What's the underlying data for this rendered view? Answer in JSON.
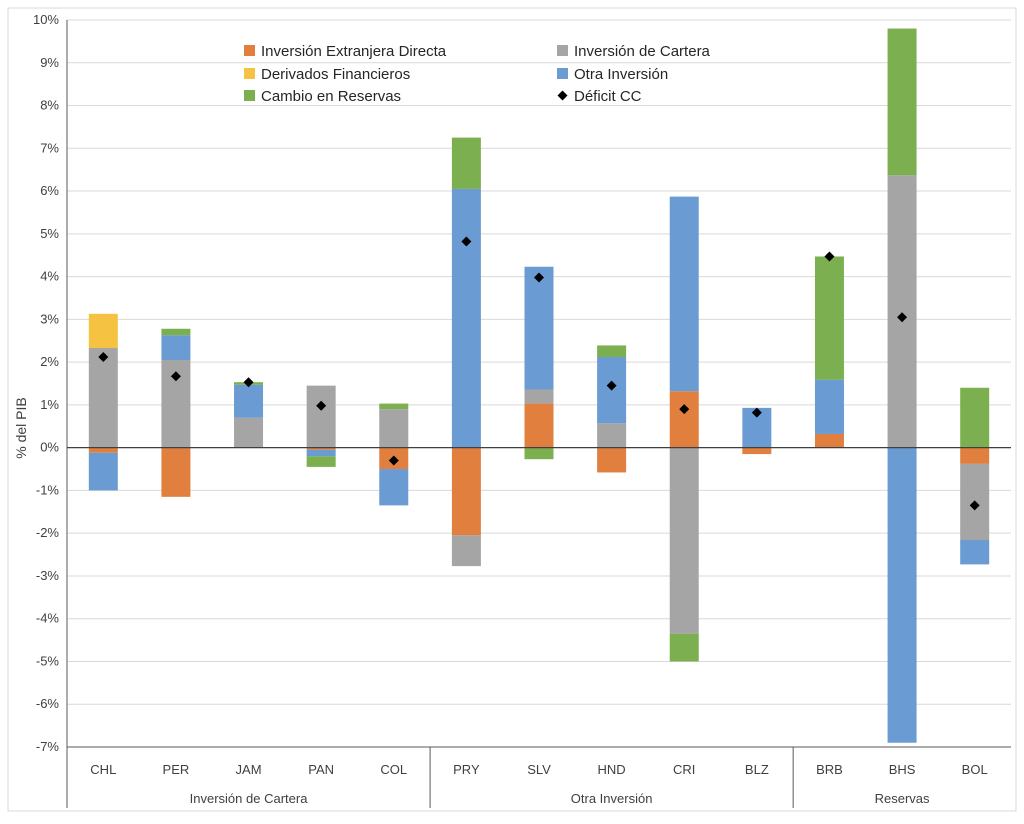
{
  "chart_data": {
    "type": "bar",
    "stacked": true,
    "title": "",
    "ylabel": "% del PIB",
    "xlabel": "",
    "ylim": [
      -7,
      10
    ],
    "ytick_step": 1,
    "ytick_format": "percent",
    "grid": true,
    "legend_position": "top-left",
    "categories": [
      "CHL",
      "PER",
      "JAM",
      "PAN",
      "COL",
      "PRY",
      "SLV",
      "HND",
      "CRI",
      "BLZ",
      "BRB",
      "BHS",
      "BOL"
    ],
    "groups": [
      {
        "label": "Inversión de Cartera",
        "count": 5
      },
      {
        "label": "Otra Inversión",
        "count": 5
      },
      {
        "label": "Reservas",
        "count": 3
      }
    ],
    "series": [
      {
        "name": "Inversión Extranjera Directa",
        "color": "#E07F3E",
        "kind": "bar",
        "values": [
          -0.12,
          -1.15,
          0,
          -0.05,
          -0.5,
          -2.05,
          1.03,
          -0.58,
          1.32,
          -0.15,
          0.32,
          0,
          -0.38
        ]
      },
      {
        "name": "Inversión de Cartera",
        "color": "#A5A5A5",
        "kind": "bar",
        "values": [
          2.33,
          2.05,
          0.7,
          1.45,
          0.9,
          -0.72,
          0.33,
          0.57,
          -4.35,
          0,
          0,
          6.37,
          -1.78
        ]
      },
      {
        "name": "Derivados Financieros",
        "color": "#F5C242",
        "kind": "bar",
        "values": [
          0.8,
          0,
          0,
          0,
          0,
          0,
          0,
          0,
          0,
          0,
          0,
          0,
          0
        ]
      },
      {
        "name": "Otra Inversión",
        "color": "#6A9BD2",
        "kind": "bar",
        "values": [
          -0.88,
          0.58,
          0.77,
          -0.15,
          -0.85,
          6.05,
          2.87,
          1.55,
          4.55,
          0.93,
          1.27,
          -6.9,
          -0.57
        ]
      },
      {
        "name": "Cambio en Reservas",
        "color": "#7BAF4F",
        "kind": "bar",
        "values": [
          0,
          0.15,
          0.06,
          -0.25,
          0.13,
          1.2,
          -0.27,
          0.27,
          -0.65,
          0,
          2.88,
          3.43,
          1.4
        ]
      },
      {
        "name": "Déficit CC",
        "color": "#000000",
        "kind": "marker",
        "values": [
          2.12,
          1.67,
          1.53,
          0.98,
          -0.3,
          4.82,
          3.98,
          1.45,
          0.9,
          0.82,
          4.47,
          3.05,
          -1.35
        ]
      }
    ]
  }
}
